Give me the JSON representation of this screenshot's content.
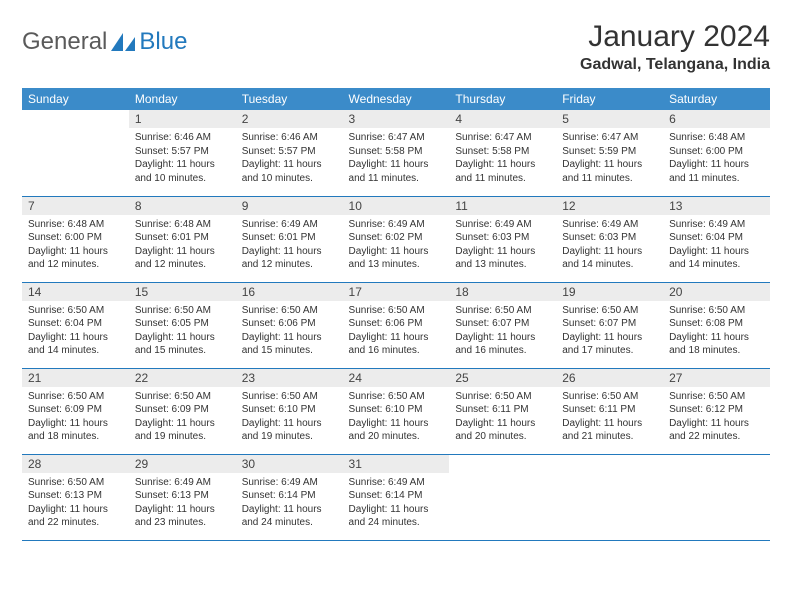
{
  "logo": {
    "gen": "General",
    "blue": "Blue"
  },
  "title": "January 2024",
  "location": "Gadwal, Telangana, India",
  "colors": {
    "header_bg": "#3b8bc9",
    "header_fg": "#ffffff",
    "daynum_bg": "#ececec",
    "rule": "#2279bd",
    "text": "#333333",
    "logo_gray": "#5a5a5a",
    "logo_blue": "#2279bd"
  },
  "columns": [
    "Sunday",
    "Monday",
    "Tuesday",
    "Wednesday",
    "Thursday",
    "Friday",
    "Saturday"
  ],
  "weeks": [
    [
      {
        "n": "",
        "sr": "",
        "ss": "",
        "dl": ""
      },
      {
        "n": "1",
        "sr": "Sunrise: 6:46 AM",
        "ss": "Sunset: 5:57 PM",
        "dl": "Daylight: 11 hours and 10 minutes."
      },
      {
        "n": "2",
        "sr": "Sunrise: 6:46 AM",
        "ss": "Sunset: 5:57 PM",
        "dl": "Daylight: 11 hours and 10 minutes."
      },
      {
        "n": "3",
        "sr": "Sunrise: 6:47 AM",
        "ss": "Sunset: 5:58 PM",
        "dl": "Daylight: 11 hours and 11 minutes."
      },
      {
        "n": "4",
        "sr": "Sunrise: 6:47 AM",
        "ss": "Sunset: 5:58 PM",
        "dl": "Daylight: 11 hours and 11 minutes."
      },
      {
        "n": "5",
        "sr": "Sunrise: 6:47 AM",
        "ss": "Sunset: 5:59 PM",
        "dl": "Daylight: 11 hours and 11 minutes."
      },
      {
        "n": "6",
        "sr": "Sunrise: 6:48 AM",
        "ss": "Sunset: 6:00 PM",
        "dl": "Daylight: 11 hours and 11 minutes."
      }
    ],
    [
      {
        "n": "7",
        "sr": "Sunrise: 6:48 AM",
        "ss": "Sunset: 6:00 PM",
        "dl": "Daylight: 11 hours and 12 minutes."
      },
      {
        "n": "8",
        "sr": "Sunrise: 6:48 AM",
        "ss": "Sunset: 6:01 PM",
        "dl": "Daylight: 11 hours and 12 minutes."
      },
      {
        "n": "9",
        "sr": "Sunrise: 6:49 AM",
        "ss": "Sunset: 6:01 PM",
        "dl": "Daylight: 11 hours and 12 minutes."
      },
      {
        "n": "10",
        "sr": "Sunrise: 6:49 AM",
        "ss": "Sunset: 6:02 PM",
        "dl": "Daylight: 11 hours and 13 minutes."
      },
      {
        "n": "11",
        "sr": "Sunrise: 6:49 AM",
        "ss": "Sunset: 6:03 PM",
        "dl": "Daylight: 11 hours and 13 minutes."
      },
      {
        "n": "12",
        "sr": "Sunrise: 6:49 AM",
        "ss": "Sunset: 6:03 PM",
        "dl": "Daylight: 11 hours and 14 minutes."
      },
      {
        "n": "13",
        "sr": "Sunrise: 6:49 AM",
        "ss": "Sunset: 6:04 PM",
        "dl": "Daylight: 11 hours and 14 minutes."
      }
    ],
    [
      {
        "n": "14",
        "sr": "Sunrise: 6:50 AM",
        "ss": "Sunset: 6:04 PM",
        "dl": "Daylight: 11 hours and 14 minutes."
      },
      {
        "n": "15",
        "sr": "Sunrise: 6:50 AM",
        "ss": "Sunset: 6:05 PM",
        "dl": "Daylight: 11 hours and 15 minutes."
      },
      {
        "n": "16",
        "sr": "Sunrise: 6:50 AM",
        "ss": "Sunset: 6:06 PM",
        "dl": "Daylight: 11 hours and 15 minutes."
      },
      {
        "n": "17",
        "sr": "Sunrise: 6:50 AM",
        "ss": "Sunset: 6:06 PM",
        "dl": "Daylight: 11 hours and 16 minutes."
      },
      {
        "n": "18",
        "sr": "Sunrise: 6:50 AM",
        "ss": "Sunset: 6:07 PM",
        "dl": "Daylight: 11 hours and 16 minutes."
      },
      {
        "n": "19",
        "sr": "Sunrise: 6:50 AM",
        "ss": "Sunset: 6:07 PM",
        "dl": "Daylight: 11 hours and 17 minutes."
      },
      {
        "n": "20",
        "sr": "Sunrise: 6:50 AM",
        "ss": "Sunset: 6:08 PM",
        "dl": "Daylight: 11 hours and 18 minutes."
      }
    ],
    [
      {
        "n": "21",
        "sr": "Sunrise: 6:50 AM",
        "ss": "Sunset: 6:09 PM",
        "dl": "Daylight: 11 hours and 18 minutes."
      },
      {
        "n": "22",
        "sr": "Sunrise: 6:50 AM",
        "ss": "Sunset: 6:09 PM",
        "dl": "Daylight: 11 hours and 19 minutes."
      },
      {
        "n": "23",
        "sr": "Sunrise: 6:50 AM",
        "ss": "Sunset: 6:10 PM",
        "dl": "Daylight: 11 hours and 19 minutes."
      },
      {
        "n": "24",
        "sr": "Sunrise: 6:50 AM",
        "ss": "Sunset: 6:10 PM",
        "dl": "Daylight: 11 hours and 20 minutes."
      },
      {
        "n": "25",
        "sr": "Sunrise: 6:50 AM",
        "ss": "Sunset: 6:11 PM",
        "dl": "Daylight: 11 hours and 20 minutes."
      },
      {
        "n": "26",
        "sr": "Sunrise: 6:50 AM",
        "ss": "Sunset: 6:11 PM",
        "dl": "Daylight: 11 hours and 21 minutes."
      },
      {
        "n": "27",
        "sr": "Sunrise: 6:50 AM",
        "ss": "Sunset: 6:12 PM",
        "dl": "Daylight: 11 hours and 22 minutes."
      }
    ],
    [
      {
        "n": "28",
        "sr": "Sunrise: 6:50 AM",
        "ss": "Sunset: 6:13 PM",
        "dl": "Daylight: 11 hours and 22 minutes."
      },
      {
        "n": "29",
        "sr": "Sunrise: 6:49 AM",
        "ss": "Sunset: 6:13 PM",
        "dl": "Daylight: 11 hours and 23 minutes."
      },
      {
        "n": "30",
        "sr": "Sunrise: 6:49 AM",
        "ss": "Sunset: 6:14 PM",
        "dl": "Daylight: 11 hours and 24 minutes."
      },
      {
        "n": "31",
        "sr": "Sunrise: 6:49 AM",
        "ss": "Sunset: 6:14 PM",
        "dl": "Daylight: 11 hours and 24 minutes."
      },
      {
        "n": "",
        "sr": "",
        "ss": "",
        "dl": ""
      },
      {
        "n": "",
        "sr": "",
        "ss": "",
        "dl": ""
      },
      {
        "n": "",
        "sr": "",
        "ss": "",
        "dl": ""
      }
    ]
  ]
}
